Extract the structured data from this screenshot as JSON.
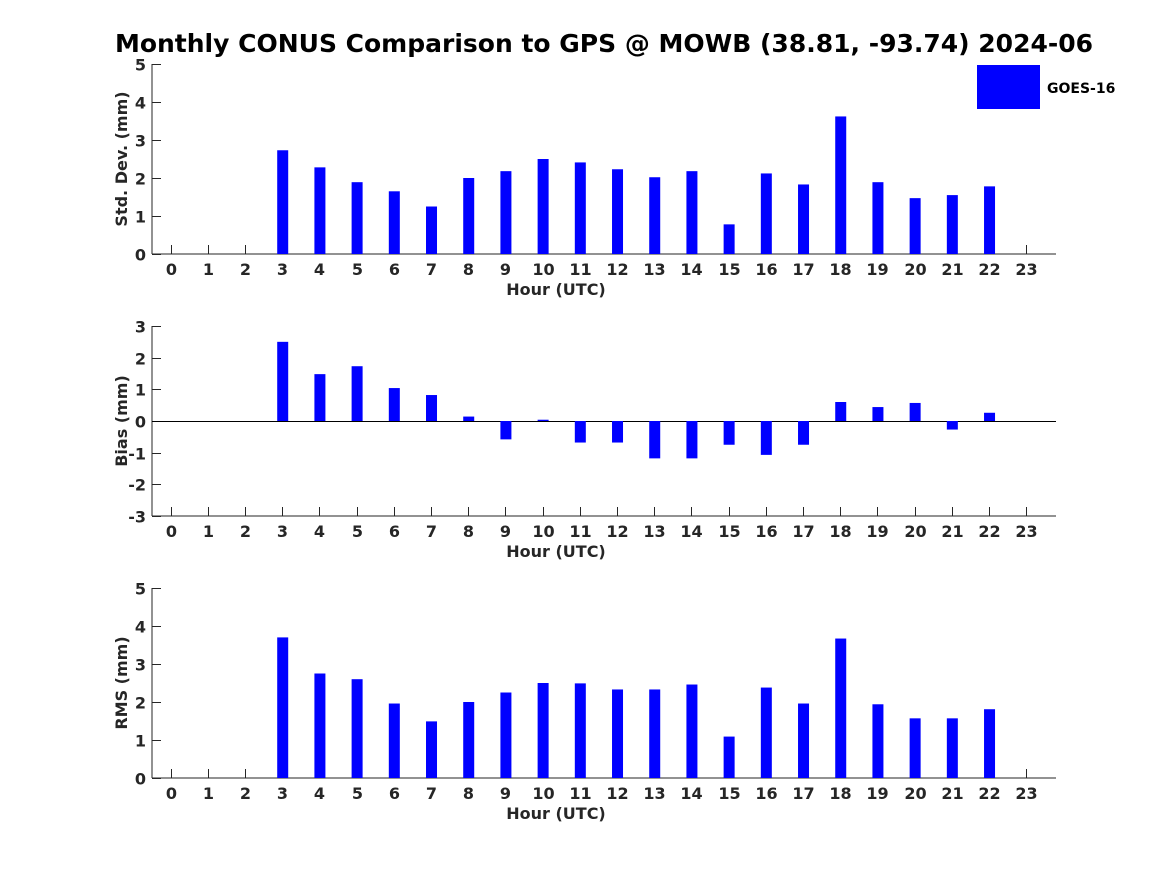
{
  "figure": {
    "title": "Monthly CONUS Comparison to GPS @ MOWB (38.81, -93.74) 2024-06"
  },
  "colors": {
    "bar": "#0000ff",
    "axis": "#262626"
  },
  "chart_data": [
    {
      "type": "bar",
      "xlabel": "Hour (UTC)",
      "ylabel": "Std. Dev. (mm)",
      "ylim": [
        0,
        5
      ],
      "yticks": [
        0,
        1,
        2,
        3,
        4,
        5
      ],
      "legend": {
        "entries": [
          "GOES-16"
        ],
        "placement": "top-right"
      },
      "categories": [
        "0",
        "1",
        "2",
        "3",
        "4",
        "5",
        "6",
        "7",
        "8",
        "9",
        "10",
        "11",
        "12",
        "13",
        "14",
        "15",
        "16",
        "17",
        "18",
        "19",
        "20",
        "21",
        "22",
        "23"
      ],
      "series": [
        {
          "name": "GOES-16",
          "values": [
            null,
            null,
            null,
            2.73,
            2.28,
            1.89,
            1.65,
            1.25,
            2.0,
            2.18,
            2.5,
            2.41,
            2.23,
            2.02,
            2.18,
            0.78,
            2.12,
            1.83,
            3.62,
            1.89,
            1.47,
            1.55,
            1.78,
            null
          ]
        }
      ]
    },
    {
      "type": "bar",
      "xlabel": "Hour (UTC)",
      "ylabel": "Bias (mm)",
      "ylim": [
        -3,
        3
      ],
      "yticks": [
        -3,
        -2,
        -1,
        0,
        1,
        2,
        3
      ],
      "categories": [
        "0",
        "1",
        "2",
        "3",
        "4",
        "5",
        "6",
        "7",
        "8",
        "9",
        "10",
        "11",
        "12",
        "13",
        "14",
        "15",
        "16",
        "17",
        "18",
        "19",
        "20",
        "21",
        "22",
        "23"
      ],
      "series": [
        {
          "values": [
            null,
            null,
            null,
            2.5,
            1.48,
            1.73,
            1.04,
            0.82,
            0.14,
            -0.58,
            0.04,
            -0.68,
            -0.68,
            -1.18,
            -1.18,
            -0.75,
            -1.07,
            -0.75,
            0.6,
            0.44,
            0.57,
            -0.27,
            0.26,
            null
          ]
        }
      ]
    },
    {
      "type": "bar",
      "xlabel": "Hour (UTC)",
      "ylabel": "RMS (mm)",
      "ylim": [
        0,
        5
      ],
      "yticks": [
        0,
        1,
        2,
        3,
        4,
        5
      ],
      "categories": [
        "0",
        "1",
        "2",
        "3",
        "4",
        "5",
        "6",
        "7",
        "8",
        "9",
        "10",
        "11",
        "12",
        "13",
        "14",
        "15",
        "16",
        "17",
        "18",
        "19",
        "20",
        "21",
        "22",
        "23"
      ],
      "series": [
        {
          "values": [
            null,
            null,
            null,
            3.7,
            2.75,
            2.6,
            1.96,
            1.49,
            2.0,
            2.25,
            2.5,
            2.49,
            2.33,
            2.33,
            2.46,
            1.09,
            2.38,
            1.96,
            3.67,
            1.94,
            1.57,
            1.57,
            1.81,
            null
          ]
        }
      ]
    }
  ]
}
